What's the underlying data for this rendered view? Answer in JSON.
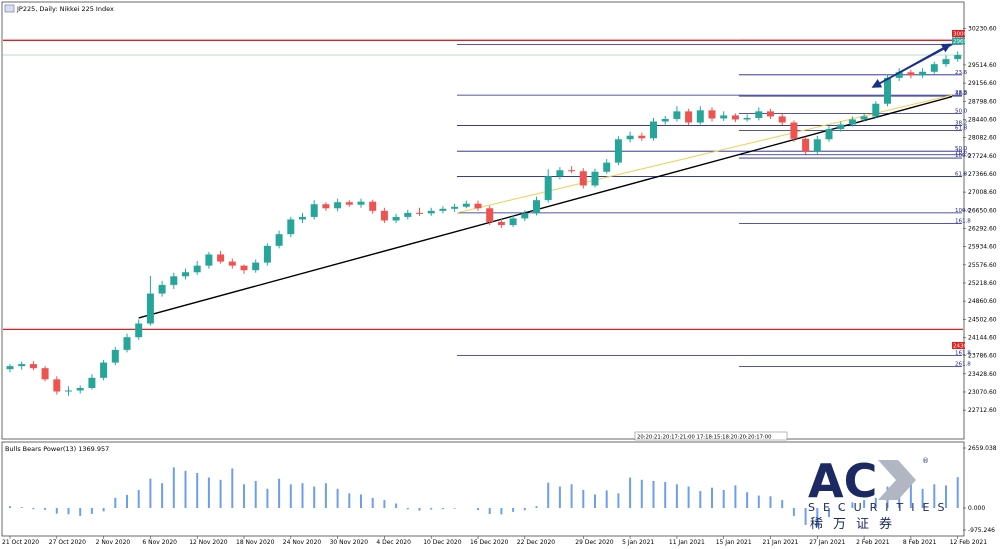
{
  "title": "JP225, Daily: Nikkei 225 Index",
  "indicator_label": "Bulls Bears Power(13) 1369.957",
  "price_tags": {
    "res": "30000.00",
    "cur": "29696.38",
    "sup": "24304.85"
  },
  "time_labels": "20:20:21:20:17:21:00 17:18:15:18:20:20:20:17:00",
  "logo": {
    "main": "AC",
    "sub": "SECURITIES",
    "cn": "稀万证券",
    "reg": "®"
  },
  "colors": {
    "bull": "#26a69a",
    "bear": "#ef5350",
    "fib": "#1a1f8c",
    "hline": "#e02020",
    "arrow": "#1a2e8c",
    "indicator": "#6d9eeb"
  },
  "chart_data": [
    {
      "type": "candlestick",
      "title": "JP225, Daily: Nikkei 225 Index",
      "ylim": [
        22420,
        30400
      ],
      "x": [
        "21 Oct 2020",
        "22 Oct 2020",
        "23 Oct 2020",
        "26 Oct 2020",
        "27 Oct 2020",
        "28 Oct 2020",
        "29 Oct 2020",
        "30 Oct 2020",
        "2 Nov 2020",
        "3 Nov 2020",
        "4 Nov 2020",
        "5 Nov 2020",
        "6 Nov 2020",
        "9 Nov 2020",
        "10 Nov 2020",
        "11 Nov 2020",
        "12 Nov 2020",
        "13 Nov 2020",
        "16 Nov 2020",
        "17 Nov 2020",
        "18 Nov 2020",
        "19 Nov 2020",
        "20 Nov 2020",
        "23 Nov 2020",
        "24 Nov 2020",
        "25 Nov 2020",
        "26 Nov 2020",
        "27 Nov 2020",
        "30 Nov 2020",
        "1 Dec 2020",
        "2 Dec 2020",
        "3 Dec 2020",
        "4 Dec 2020",
        "7 Dec 2020",
        "8 Dec 2020",
        "9 Dec 2020",
        "10 Dec 2020",
        "11 Dec 2020",
        "14 Dec 2020",
        "15 Dec 2020",
        "16 Dec 2020",
        "17 Dec 2020",
        "18 Dec 2020",
        "21 Dec 2020",
        "22 Dec 2020",
        "23 Dec 2020",
        "24 Dec 2020",
        "25 Dec 2020",
        "28 Dec 2020",
        "29 Dec 2020",
        "30 Dec 2020",
        "31 Dec 2020",
        "4 Jan 2021",
        "5 Jan 2021",
        "6 Jan 2021",
        "7 Jan 2021",
        "8 Jan 2021",
        "11 Jan 2021",
        "12 Jan 2021",
        "13 Jan 2021",
        "14 Jan 2021",
        "15 Jan 2021",
        "18 Jan 2021",
        "19 Jan 2021",
        "20 Jan 2021",
        "21 Jan 2021",
        "22 Jan 2021",
        "25 Jan 2021",
        "26 Jan 2021",
        "27 Jan 2021",
        "28 Jan 2021",
        "29 Jan 2021",
        "1 Feb 2021",
        "2 Feb 2021",
        "3 Feb 2021",
        "4 Feb 2021",
        "5 Feb 2021",
        "8 Feb 2021",
        "9 Feb 2021",
        "10 Feb 2021",
        "11 Feb 2021",
        "12 Feb 2021"
      ],
      "open": [
        23520,
        23580,
        23620,
        23540,
        23320,
        23080,
        23100,
        23150,
        23350,
        23650,
        23900,
        24150,
        24420,
        25010,
        25180,
        25350,
        25430,
        25560,
        25780,
        25640,
        25560,
        25470,
        25620,
        25950,
        26180,
        26470,
        26520,
        26770,
        26690,
        26810,
        26760,
        26820,
        26640,
        26450,
        26520,
        26600,
        26590,
        26640,
        26680,
        26720,
        26780,
        26690,
        26420,
        26360,
        26490,
        26590,
        26850,
        27320,
        27440,
        27420,
        27140,
        27410,
        27590,
        28050,
        28120,
        28070,
        28400,
        28450,
        28600,
        28380,
        28620,
        28460,
        28520,
        28440,
        28470,
        28600,
        28500,
        28380,
        28060,
        27800,
        28050,
        28250,
        28340,
        28440,
        28500,
        28750,
        29260,
        29370,
        29310,
        29380,
        29530,
        29630
      ],
      "close": [
        23580,
        23620,
        23540,
        23320,
        23080,
        23100,
        23150,
        23350,
        23650,
        23900,
        24150,
        24420,
        25010,
        25180,
        25350,
        25430,
        25560,
        25780,
        25640,
        25560,
        25470,
        25620,
        25950,
        26180,
        26470,
        26520,
        26770,
        26690,
        26810,
        26760,
        26820,
        26640,
        26450,
        26520,
        26600,
        26590,
        26640,
        26680,
        26720,
        26780,
        26690,
        26420,
        26360,
        26490,
        26590,
        26850,
        27320,
        27440,
        27420,
        27140,
        27410,
        27590,
        28050,
        28120,
        28070,
        28400,
        28450,
        28600,
        28380,
        28620,
        28460,
        28520,
        28440,
        28470,
        28600,
        28500,
        28380,
        28060,
        27800,
        28050,
        28250,
        28340,
        28440,
        28500,
        28750,
        29260,
        29370,
        29310,
        29380,
        29530,
        29630,
        29710
      ],
      "high": [
        23620,
        23670,
        23680,
        23580,
        23380,
        23180,
        23200,
        23420,
        23700,
        23960,
        24220,
        24500,
        25360,
        25260,
        25420,
        25500,
        25650,
        25830,
        25850,
        25700,
        25580,
        25680,
        26000,
        26250,
        26520,
        26600,
        26850,
        26810,
        26880,
        26850,
        26880,
        26860,
        26700,
        26580,
        26660,
        26700,
        26700,
        26730,
        26780,
        26840,
        26840,
        26740,
        26480,
        26560,
        26650,
        26920,
        27460,
        27500,
        27520,
        27480,
        27470,
        27660,
        28110,
        28200,
        28180,
        28470,
        28510,
        28700,
        28650,
        28700,
        28680,
        28600,
        28560,
        28540,
        28680,
        28650,
        28560,
        28420,
        28100,
        28120,
        28310,
        28400,
        28500,
        28560,
        28800,
        29320,
        29450,
        29420,
        29450,
        29580,
        29700,
        29780
      ],
      "low": [
        23460,
        23510,
        23500,
        23280,
        23020,
        23000,
        23040,
        23120,
        23300,
        23600,
        23850,
        24100,
        24380,
        24950,
        25100,
        25290,
        25380,
        25500,
        25600,
        25500,
        25400,
        25420,
        25560,
        25900,
        26120,
        26400,
        26470,
        26640,
        26630,
        26720,
        26700,
        26580,
        26400,
        26400,
        26470,
        26540,
        26540,
        26590,
        26620,
        26690,
        26640,
        26360,
        26300,
        26320,
        26440,
        26550,
        26800,
        27260,
        27380,
        27080,
        27100,
        27370,
        27540,
        27990,
        28020,
        28020,
        28340,
        28400,
        28330,
        28340,
        28400,
        28410,
        28390,
        28400,
        28420,
        28450,
        28330,
        28000,
        27750,
        27760,
        28000,
        28200,
        28300,
        28400,
        28460,
        28700,
        29200,
        29250,
        29260,
        29340,
        29480,
        29580
      ]
    },
    {
      "type": "bar",
      "title": "Bulls Bears Power(13) 1369.957",
      "ylim": [
        -975.246,
        2659.038
      ],
      "values": [
        80,
        40,
        -50,
        -80,
        -250,
        -280,
        -350,
        -260,
        -150,
        450,
        580,
        800,
        1300,
        1100,
        1800,
        1650,
        1550,
        1350,
        1250,
        1750,
        1050,
        1200,
        850,
        1300,
        1050,
        1100,
        950,
        1100,
        850,
        650,
        600,
        450,
        350,
        200,
        -60,
        -120,
        -70,
        -50,
        -30,
        0,
        -90,
        -270,
        -280,
        -170,
        -100,
        80,
        1120,
        950,
        1050,
        800,
        600,
        780,
        650,
        1350,
        1250,
        1200,
        1150,
        1050,
        950,
        750,
        900,
        800,
        1000,
        700,
        550,
        520,
        350,
        -350,
        -750,
        -850,
        -400,
        -100,
        250,
        350,
        450,
        950,
        1400,
        1350,
        850,
        1050,
        1000,
        1370
      ]
    }
  ],
  "price_axis": [
    "30230.60",
    "29514.60",
    "29156.60",
    "28798.60",
    "28440.60",
    "28082.60",
    "27724.60",
    "27366.60",
    "27008.60",
    "26650.60",
    "26292.60",
    "25934.60",
    "25576.60",
    "25218.60",
    "24860.60",
    "24502.60",
    "24144.60",
    "23786.60",
    "23428.60",
    "23070.60",
    "22712.60"
  ],
  "indicator_axis": [
    "2659.038",
    "0.000",
    "-975.246"
  ],
  "date_axis": [
    "21 Oct 2020",
    "27 Oct 2020",
    "2 Nov 2020",
    "6 Nov 2020",
    "12 Nov 2020",
    "18 Nov 2020",
    "24 Nov 2020",
    "30 Nov 2020",
    "4 Dec 2020",
    "10 Dec 2020",
    "16 Dec 2020",
    "22 Dec 2020",
    "29 Dec 2020",
    "5 Jan 2021",
    "11 Jan 2021",
    "15 Jan 2021",
    "21 Jan 2021",
    "27 Jan 2021",
    "2 Feb 2021",
    "8 Feb 2021",
    "12 Feb 2021"
  ],
  "fib_levels": {
    "right": [
      {
        "price": 30000,
        "label": "0.0"
      },
      {
        "price": 29320,
        "label": "23.6"
      },
      {
        "price": 28900,
        "label": "38.2"
      },
      {
        "price": 28560,
        "label": "50.0"
      },
      {
        "price": 28220,
        "label": "61.8"
      },
      {
        "price": 27745,
        "label": "78.6"
      },
      {
        "price": 27680,
        "label": "100.0"
      },
      {
        "price": 26390,
        "label": "161.8"
      },
      {
        "price": 23570,
        "label": "261.8"
      }
    ],
    "left": [
      {
        "price": 29920,
        "label": ""
      },
      {
        "price": 28920,
        "label": "23.6"
      },
      {
        "price": 28320,
        "label": "38.2"
      },
      {
        "price": 27815,
        "label": "50.0"
      },
      {
        "price": 27315,
        "label": "61.8"
      },
      {
        "price": 26600,
        "label": "100.0"
      },
      {
        "price": 23790,
        "label": "161.8"
      }
    ]
  },
  "horizontal_lines": [
    30000,
    24304.85
  ]
}
